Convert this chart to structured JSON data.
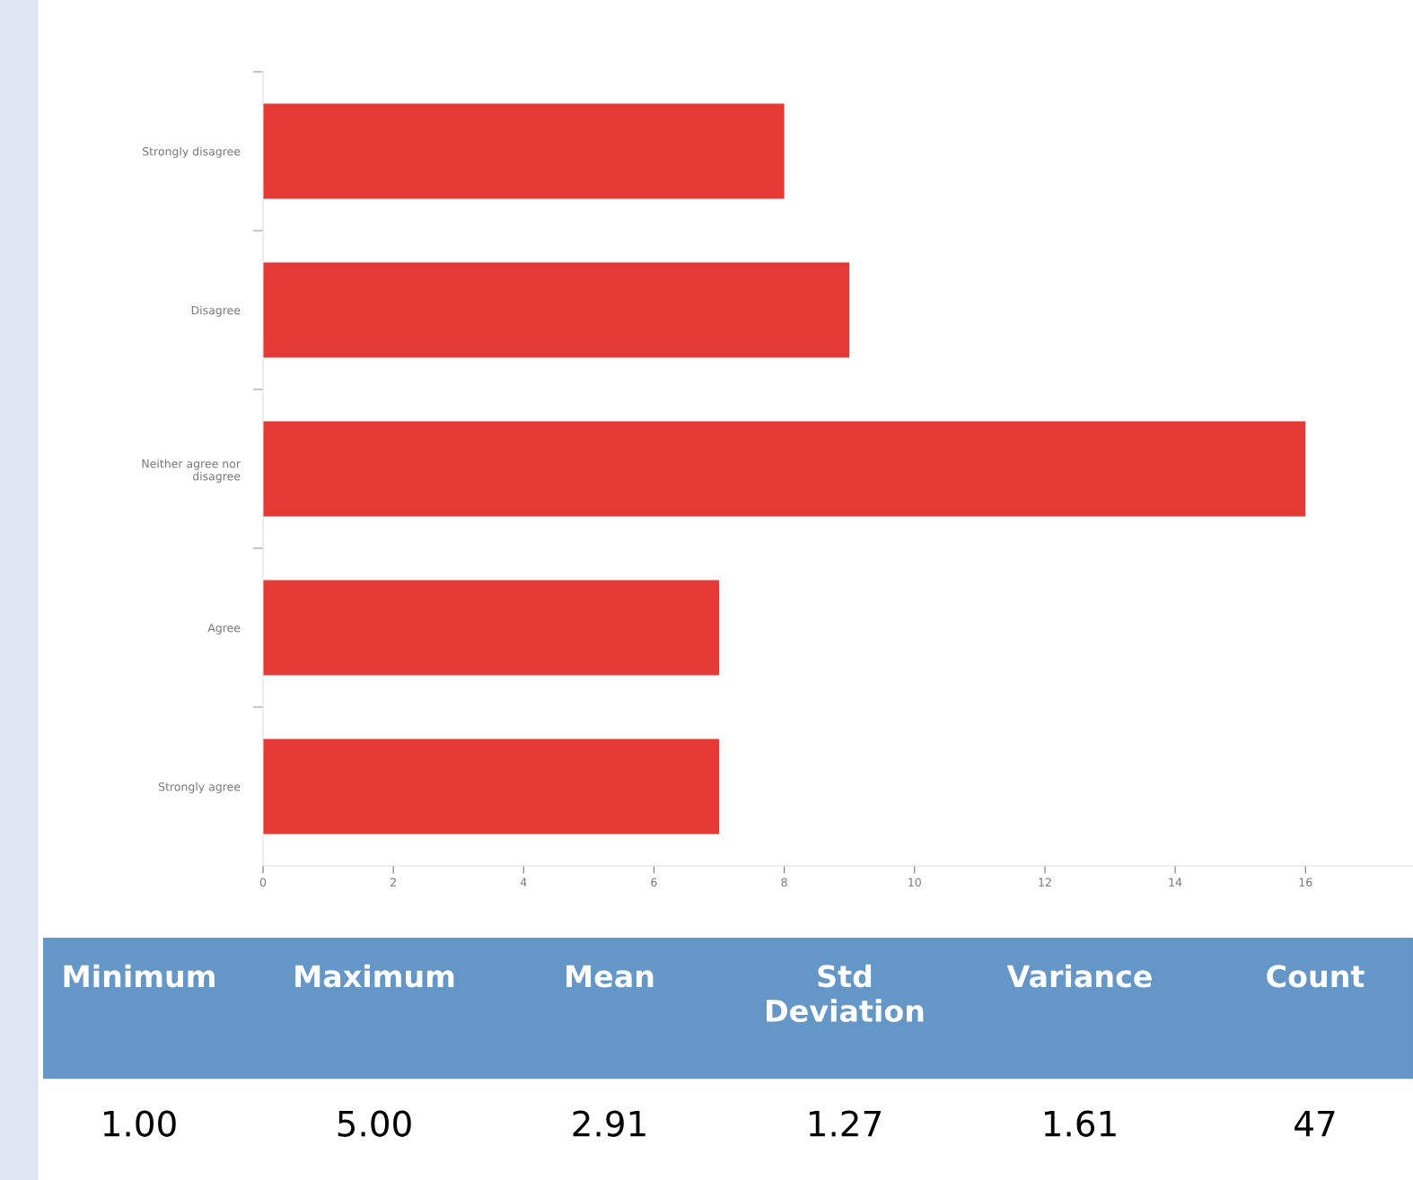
{
  "chart_data": [
    {
      "type": "bar",
      "orientation": "horizontal",
      "categories": [
        "Strongly disagree",
        "Disagree",
        "Neither agree nor disagree",
        "Agree",
        "Strongly agree"
      ],
      "values": [
        8,
        9,
        16,
        7,
        7
      ],
      "color": "#e53935",
      "xlim": [
        0,
        17.65
      ],
      "xticks": [
        0,
        2,
        4,
        6,
        8,
        10,
        12,
        14,
        16
      ],
      "grid": false,
      "legend": false
    },
    {
      "type": "other",
      "categories": [
        "Minimum",
        "Maximum",
        "Mean",
        "Std Deviation",
        "Variance",
        "Count"
      ],
      "values": [
        1.0,
        5.0,
        2.91,
        1.27,
        1.61,
        47
      ],
      "value_labels": [
        "1.00",
        "5.00",
        "2.91",
        "1.27",
        "1.61",
        "47"
      ],
      "color": "#6496c8"
    }
  ]
}
